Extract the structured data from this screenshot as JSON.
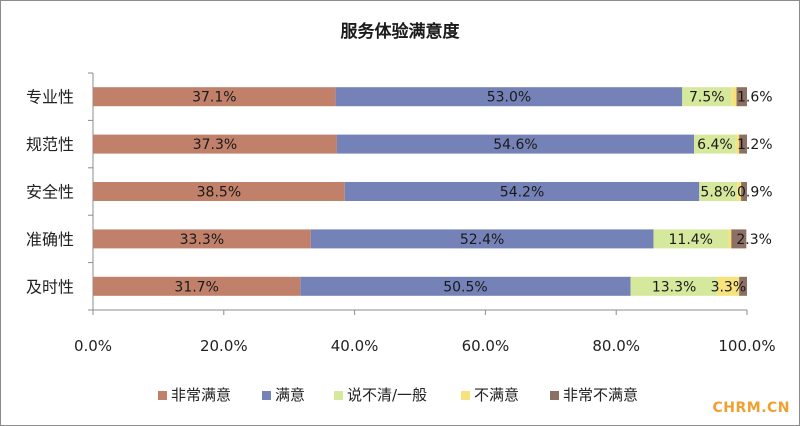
{
  "chart_data": {
    "type": "bar",
    "orientation": "horizontal",
    "stacked": true,
    "title": "服务体验满意度",
    "xlabel": "",
    "ylabel": "",
    "xlim": [
      0,
      100
    ],
    "x_ticks": [
      "0.0%",
      "20.0%",
      "40.0%",
      "60.0%",
      "80.0%",
      "100.0%"
    ],
    "categories": [
      "专业性",
      "规范性",
      "安全性",
      "准确性",
      "及时性"
    ],
    "series": [
      {
        "name": "非常满意",
        "color": "#c0806a",
        "values": [
          37.1,
          37.3,
          38.5,
          33.3,
          31.7
        ],
        "labels": [
          "37.1%",
          "37.3%",
          "38.5%",
          "33.3%",
          "31.7%"
        ]
      },
      {
        "name": "满意",
        "color": "#7582b8",
        "values": [
          53.0,
          54.6,
          54.2,
          52.4,
          50.5
        ],
        "labels": [
          "53.0%",
          "54.6%",
          "54.2%",
          "52.4%",
          "50.5%"
        ]
      },
      {
        "name": "说不清/一般",
        "color": "#d6e89c",
        "values": [
          7.5,
          6.4,
          5.8,
          11.4,
          13.3
        ],
        "labels": [
          "7.5%",
          "6.4%",
          "5.8%",
          "11.4%",
          "13.3%"
        ]
      },
      {
        "name": "不满意",
        "color": "#f7e27c",
        "values": [
          0.8,
          0.5,
          0.6,
          0.5,
          3.3
        ],
        "labels": [
          "",
          "",
          "",
          "",
          "3.3%"
        ]
      },
      {
        "name": "非常不满意",
        "color": "#8c7064",
        "values": [
          1.6,
          1.2,
          0.9,
          2.3,
          1.2
        ],
        "labels": [
          "1.6%",
          "1.2%",
          "0.9%",
          "2.3%",
          ""
        ]
      }
    ],
    "grid": false,
    "legend_position": "bottom"
  },
  "watermark": "CHRM.CN"
}
